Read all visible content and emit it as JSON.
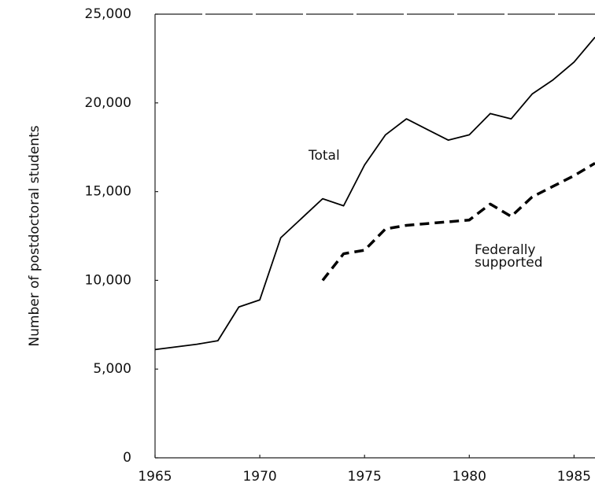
{
  "chart_data": {
    "type": "line",
    "y_label": "Number of postdoctoral students",
    "x": [
      1965,
      1966,
      1967,
      1968,
      1969,
      1970,
      1971,
      1972,
      1973,
      1974,
      1975,
      1976,
      1977,
      1978,
      1979,
      1980,
      1981,
      1982,
      1983,
      1984,
      1985,
      1986
    ],
    "series": [
      {
        "name": "Total",
        "color": "#000000",
        "style": "solid",
        "values": [
          6100,
          6250,
          6400,
          6600,
          8500,
          8900,
          12400,
          13500,
          14600,
          14200,
          16500,
          18200,
          19100,
          18500,
          17900,
          18200,
          19400,
          19100,
          20500,
          21300,
          22300,
          23700
        ]
      },
      {
        "name": "Federally supported",
        "color": "#000000",
        "style": "dashed",
        "values": [
          null,
          null,
          null,
          null,
          null,
          null,
          null,
          null,
          10000,
          11500,
          11700,
          12900,
          13100,
          13200,
          13300,
          13400,
          14300,
          13600,
          14700,
          15300,
          15900,
          16600
        ]
      }
    ],
    "annotations": [
      "Total",
      "Federally",
      "supported"
    ],
    "xlim": [
      1965,
      1986
    ],
    "xticks": [
      1965,
      1970,
      1975,
      1980,
      1985
    ],
    "ylim": [
      0,
      25000
    ],
    "yticks": [
      0,
      {
        "value": 5000,
        "label": "5,000"
      },
      {
        "value": 10000,
        "label": "10,000"
      },
      {
        "value": 15000,
        "label": "15,000"
      },
      {
        "value": 20000,
        "label": "20,000"
      },
      {
        "value": 25000,
        "label": "25,000"
      }
    ],
    "grid": false
  }
}
